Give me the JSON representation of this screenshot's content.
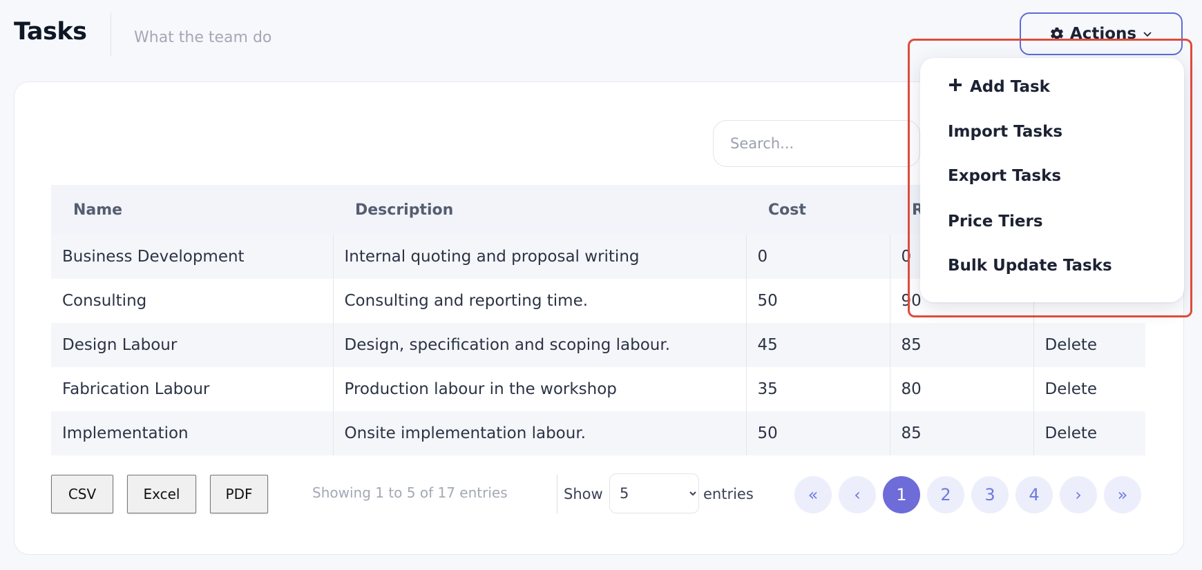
{
  "header": {
    "title": "Tasks",
    "subtitle": "What the team do",
    "actions_label": "Actions"
  },
  "search": {
    "placeholder": "Search..."
  },
  "table": {
    "columns": [
      "Name",
      "Description",
      "Cost",
      "R"
    ],
    "rows": [
      {
        "name": "Business Development",
        "description": "Internal quoting and proposal writing",
        "cost": "0",
        "rate": "0",
        "action": ""
      },
      {
        "name": "Consulting",
        "description": "Consulting and reporting time.",
        "cost": "50",
        "rate": "90",
        "action": ""
      },
      {
        "name": "Design Labour",
        "description": "Design, specification and scoping labour.",
        "cost": "45",
        "rate": "85",
        "action": "Delete"
      },
      {
        "name": "Fabrication Labour",
        "description": "Production labour in the workshop",
        "cost": "35",
        "rate": "80",
        "action": "Delete"
      },
      {
        "name": "Implementation",
        "description": "Onsite implementation labour.",
        "cost": "50",
        "rate": "85",
        "action": "Delete"
      }
    ]
  },
  "footer": {
    "csv_label": "CSV",
    "excel_label": "Excel",
    "pdf_label": "PDF",
    "entries_info": "Showing 1 to 5 of 17 entries",
    "show_label": "Show",
    "page_length": "5",
    "entries_label": "entries"
  },
  "pagination": {
    "first": "«",
    "prev": "‹",
    "pages": [
      "1",
      "2",
      "3",
      "4"
    ],
    "active_page": "1",
    "next": "›",
    "last": "»"
  },
  "actions_menu": {
    "items": [
      "Add Task",
      "Import Tasks",
      "Export Tasks",
      "Price Tiers",
      "Bulk Update Tasks"
    ]
  },
  "colors": {
    "accent": "#6e79e0",
    "active_page": "#6e6cd8",
    "highlight": "#e04a3a"
  },
  "icons": {
    "actions": "gear-icon",
    "actions_caret": "chevron-down-icon",
    "add_task": "plus-icon"
  }
}
